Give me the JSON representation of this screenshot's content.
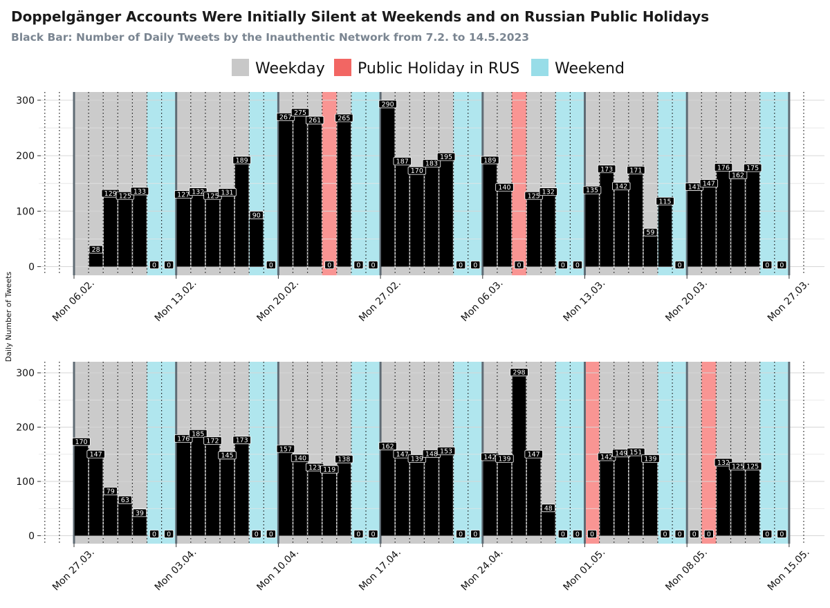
{
  "title": "Doppelgänger Accounts Were Initially Silent at Weekends and on Russian Public Holidays",
  "subtitle": "Black Bar: Number of Daily Tweets by the Inauthentic Network from 7.2. to 14.5.2023",
  "legend": [
    {
      "label": "Weekday",
      "color": "#c8c8c8"
    },
    {
      "label": "Public Holiday in RUS",
      "color": "#f26663"
    },
    {
      "label": "Weekend",
      "color": "#98dde8"
    }
  ],
  "ylabel": "Daily Number of Tweets",
  "chart_data": [
    {
      "type": "bar",
      "ylim": [
        0,
        300
      ],
      "yticks": [
        0,
        100,
        200,
        300
      ],
      "grid": true,
      "xtick_labels": [
        "Mon 06.02.",
        "Mon 13.02.",
        "Mon 20.02.",
        "Mon 27.02.",
        "Mon 06.03.",
        "Mon 13.03.",
        "Mon 20.03.",
        "Mon 27.03."
      ],
      "days": [
        {
          "date": "07.02.",
          "value": 28,
          "type": "weekday"
        },
        {
          "date": "08.02.",
          "value": 129,
          "type": "weekday"
        },
        {
          "date": "09.02.",
          "value": 125,
          "type": "weekday"
        },
        {
          "date": "10.02.",
          "value": 133,
          "type": "weekday"
        },
        {
          "date": "11.02.",
          "value": 0,
          "type": "weekend"
        },
        {
          "date": "12.02.",
          "value": 0,
          "type": "weekend"
        },
        {
          "date": "13.02.",
          "value": 127,
          "type": "weekday"
        },
        {
          "date": "14.02.",
          "value": 132,
          "type": "weekday"
        },
        {
          "date": "15.02.",
          "value": 125,
          "type": "weekday"
        },
        {
          "date": "16.02.",
          "value": 131,
          "type": "weekday"
        },
        {
          "date": "17.02.",
          "value": 189,
          "type": "weekday"
        },
        {
          "date": "18.02.",
          "value": 90,
          "type": "weekend"
        },
        {
          "date": "19.02.",
          "value": 0,
          "type": "weekend"
        },
        {
          "date": "20.02.",
          "value": 267,
          "type": "weekday"
        },
        {
          "date": "21.02.",
          "value": 275,
          "type": "weekday"
        },
        {
          "date": "22.02.",
          "value": 261,
          "type": "weekday"
        },
        {
          "date": "23.02.",
          "value": 0,
          "type": "holiday"
        },
        {
          "date": "24.02.",
          "value": 265,
          "type": "weekday"
        },
        {
          "date": "25.02.",
          "value": 0,
          "type": "weekend"
        },
        {
          "date": "26.02.",
          "value": 0,
          "type": "weekend"
        },
        {
          "date": "27.02.",
          "value": 290,
          "type": "weekday"
        },
        {
          "date": "28.02.",
          "value": 187,
          "type": "weekday"
        },
        {
          "date": "01.03.",
          "value": 170,
          "type": "weekday"
        },
        {
          "date": "02.03.",
          "value": 183,
          "type": "weekday"
        },
        {
          "date": "03.03.",
          "value": 195,
          "type": "weekday"
        },
        {
          "date": "04.03.",
          "value": 0,
          "type": "weekend"
        },
        {
          "date": "05.03.",
          "value": 0,
          "type": "weekend"
        },
        {
          "date": "06.03.",
          "value": 189,
          "type": "weekday"
        },
        {
          "date": "07.03.",
          "value": 140,
          "type": "weekday"
        },
        {
          "date": "08.03.",
          "value": 0,
          "type": "holiday"
        },
        {
          "date": "09.03.",
          "value": 125,
          "type": "weekday"
        },
        {
          "date": "10.03.",
          "value": 132,
          "type": "weekday"
        },
        {
          "date": "11.03.",
          "value": 0,
          "type": "weekend"
        },
        {
          "date": "12.03.",
          "value": 0,
          "type": "weekend"
        },
        {
          "date": "13.03.",
          "value": 135,
          "type": "weekday"
        },
        {
          "date": "14.03.",
          "value": 173,
          "type": "weekday"
        },
        {
          "date": "15.03.",
          "value": 142,
          "type": "weekday"
        },
        {
          "date": "16.03.",
          "value": 171,
          "type": "weekday"
        },
        {
          "date": "17.03.",
          "value": 59,
          "type": "weekday"
        },
        {
          "date": "18.03.",
          "value": 115,
          "type": "weekend"
        },
        {
          "date": "19.03.",
          "value": 0,
          "type": "weekend"
        },
        {
          "date": "20.03.",
          "value": 141,
          "type": "weekday"
        },
        {
          "date": "21.03.",
          "value": 147,
          "type": "weekday"
        },
        {
          "date": "22.03.",
          "value": 176,
          "type": "weekday"
        },
        {
          "date": "23.03.",
          "value": 162,
          "type": "weekday"
        },
        {
          "date": "24.03.",
          "value": 175,
          "type": "weekday"
        },
        {
          "date": "25.03.",
          "value": 0,
          "type": "weekend"
        },
        {
          "date": "26.03.",
          "value": 0,
          "type": "weekend"
        }
      ]
    },
    {
      "type": "bar",
      "ylim": [
        0,
        300
      ],
      "yticks": [
        0,
        100,
        200,
        300
      ],
      "grid": true,
      "xtick_labels": [
        "Mon 27.03.",
        "Mon 03.04.",
        "Mon 10.04.",
        "Mon 17.04.",
        "Mon 24.04.",
        "Mon 01.05.",
        "Mon 08.05.",
        "Mon 15.05."
      ],
      "days": [
        {
          "date": "27.03.",
          "value": 170,
          "type": "weekday"
        },
        {
          "date": "28.03.",
          "value": 147,
          "type": "weekday"
        },
        {
          "date": "29.03.",
          "value": 79,
          "type": "weekday"
        },
        {
          "date": "30.03.",
          "value": 63,
          "type": "weekday"
        },
        {
          "date": "31.03.",
          "value": 39,
          "type": "weekday"
        },
        {
          "date": "01.04.",
          "value": 0,
          "type": "weekend"
        },
        {
          "date": "02.04.",
          "value": 0,
          "type": "weekend"
        },
        {
          "date": "03.04.",
          "value": 176,
          "type": "weekday"
        },
        {
          "date": "04.04.",
          "value": 185,
          "type": "weekday"
        },
        {
          "date": "05.04.",
          "value": 172,
          "type": "weekday"
        },
        {
          "date": "06.04.",
          "value": 145,
          "type": "weekday"
        },
        {
          "date": "07.04.",
          "value": 173,
          "type": "weekday"
        },
        {
          "date": "08.04.",
          "value": 0,
          "type": "weekend"
        },
        {
          "date": "09.04.",
          "value": 0,
          "type": "weekend"
        },
        {
          "date": "10.04.",
          "value": 157,
          "type": "weekday"
        },
        {
          "date": "11.04.",
          "value": 140,
          "type": "weekday"
        },
        {
          "date": "12.04.",
          "value": 123,
          "type": "weekday"
        },
        {
          "date": "13.04.",
          "value": 119,
          "type": "weekday"
        },
        {
          "date": "14.04.",
          "value": 138,
          "type": "weekday"
        },
        {
          "date": "15.04.",
          "value": 0,
          "type": "weekend"
        },
        {
          "date": "16.04.",
          "value": 0,
          "type": "weekend"
        },
        {
          "date": "17.04.",
          "value": 162,
          "type": "weekday"
        },
        {
          "date": "18.04.",
          "value": 147,
          "type": "weekday"
        },
        {
          "date": "19.04.",
          "value": 139,
          "type": "weekday"
        },
        {
          "date": "20.04.",
          "value": 148,
          "type": "weekday"
        },
        {
          "date": "21.04.",
          "value": 153,
          "type": "weekday"
        },
        {
          "date": "22.04.",
          "value": 0,
          "type": "weekend"
        },
        {
          "date": "23.04.",
          "value": 0,
          "type": "weekend"
        },
        {
          "date": "24.04.",
          "value": 142,
          "type": "weekday"
        },
        {
          "date": "25.04.",
          "value": 139,
          "type": "weekday"
        },
        {
          "date": "26.04.",
          "value": 298,
          "type": "weekday"
        },
        {
          "date": "27.04.",
          "value": 147,
          "type": "weekday"
        },
        {
          "date": "28.04.",
          "value": 48,
          "type": "weekday"
        },
        {
          "date": "29.04.",
          "value": 0,
          "type": "weekend"
        },
        {
          "date": "30.04.",
          "value": 0,
          "type": "weekend"
        },
        {
          "date": "01.05.",
          "value": 0,
          "type": "holiday"
        },
        {
          "date": "02.05.",
          "value": 142,
          "type": "weekday"
        },
        {
          "date": "03.05.",
          "value": 149,
          "type": "weekday"
        },
        {
          "date": "04.05.",
          "value": 151,
          "type": "weekday"
        },
        {
          "date": "05.05.",
          "value": 139,
          "type": "weekday"
        },
        {
          "date": "06.05.",
          "value": 0,
          "type": "weekend"
        },
        {
          "date": "07.05.",
          "value": 0,
          "type": "weekend"
        },
        {
          "date": "08.05.",
          "value": 0,
          "type": "weekday"
        },
        {
          "date": "09.05.",
          "value": 0,
          "type": "holiday"
        },
        {
          "date": "10.05.",
          "value": 132,
          "type": "weekday"
        },
        {
          "date": "11.05.",
          "value": 125,
          "type": "weekday"
        },
        {
          "date": "12.05.",
          "value": 125,
          "type": "weekday"
        },
        {
          "date": "13.05.",
          "value": 0,
          "type": "weekend"
        },
        {
          "date": "14.05.",
          "value": 0,
          "type": "weekend"
        }
      ]
    }
  ]
}
